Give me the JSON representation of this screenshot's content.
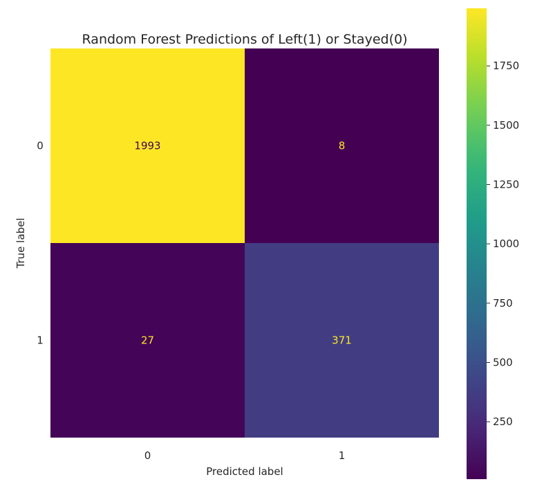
{
  "chart_data": {
    "type": "heatmap",
    "title": "Random Forest Predictions of Left(1) or Stayed(0)",
    "xlabel": "Predicted label",
    "ylabel": "True label",
    "x_categories": [
      "0",
      "1"
    ],
    "y_categories": [
      "0",
      "1"
    ],
    "matrix": [
      [
        1993,
        8
      ],
      [
        27,
        371
      ]
    ],
    "colormap": "viridis",
    "colorbar": {
      "range": [
        8,
        1993
      ],
      "ticks": [
        250,
        500,
        750,
        1000,
        1250,
        1500,
        1750
      ]
    },
    "grid": false
  },
  "colors": {
    "text_dark_cell": "#fde725",
    "text_light_cell": "#440154"
  }
}
